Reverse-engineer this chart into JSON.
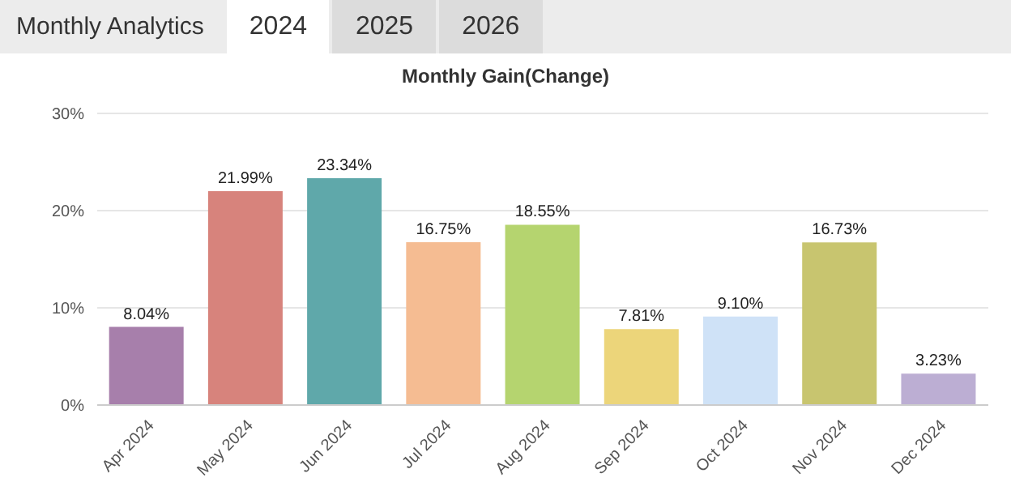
{
  "chart_data": {
    "type": "bar",
    "title": "Monthly Gain(Change)",
    "annotations": [
      "Monthly Analytics",
      "2024",
      "2025",
      "2026"
    ],
    "categories": [
      "Apr 2024",
      "May 2024",
      "Jun 2024",
      "Jul 2024",
      "Aug 2024",
      "Sep 2024",
      "Oct 2024",
      "Nov 2024",
      "Dec 2024"
    ],
    "values": [
      8.04,
      21.99,
      23.34,
      16.75,
      18.55,
      7.81,
      9.1,
      16.73,
      3.23
    ],
    "value_labels": [
      "8.04%",
      "21.99%",
      "23.34%",
      "16.75%",
      "18.55%",
      "7.81%",
      "9.10%",
      "16.73%",
      "3.23%"
    ],
    "colors": [
      "#a77fab",
      "#d7837c",
      "#5fa8aa",
      "#f5bc92",
      "#b5d46f",
      "#ecd57a",
      "#cfe2f7",
      "#c8c56f",
      "#bcaed3"
    ],
    "ylim": [
      0,
      30
    ],
    "yticks": [
      {
        "value": 0,
        "label": "0%"
      },
      {
        "value": 10,
        "label": "10%"
      },
      {
        "value": 20,
        "label": "20%"
      },
      {
        "value": 30,
        "label": "30%"
      }
    ],
    "grid": "y",
    "legend": false
  }
}
